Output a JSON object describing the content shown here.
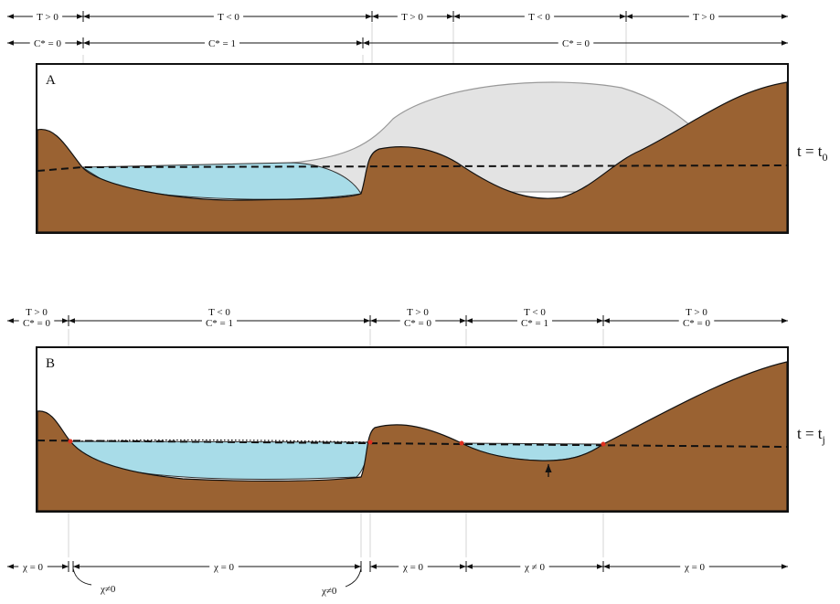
{
  "panels": [
    {
      "label": "A",
      "time": {
        "text": "t = t",
        "subscript": "0"
      },
      "temperature": [
        "T > 0",
        "T < 0",
        "T > 0",
        "T < 0",
        "T > 0"
      ],
      "concentration": [
        "C* = 0",
        "C* = 1",
        "C* = 0"
      ]
    },
    {
      "label": "B",
      "time": {
        "text": "t = t",
        "subscript": "j"
      },
      "zones": [
        {
          "temperature": "T > 0",
          "concentration": "C* = 0"
        },
        {
          "temperature": "T < 0",
          "concentration": "C* = 1"
        },
        {
          "temperature": "T > 0",
          "concentration": "C* = 0"
        },
        {
          "temperature": "T < 0",
          "concentration": "C* = 1"
        },
        {
          "temperature": "T > 0",
          "concentration": "C* = 0"
        }
      ]
    }
  ],
  "chi": {
    "zones": [
      "χ = 0",
      "χ = 0",
      "χ = 0",
      "χ ≠ 0",
      "χ = 0"
    ],
    "callouts": [
      "χ≠0",
      "χ≠0"
    ]
  }
}
